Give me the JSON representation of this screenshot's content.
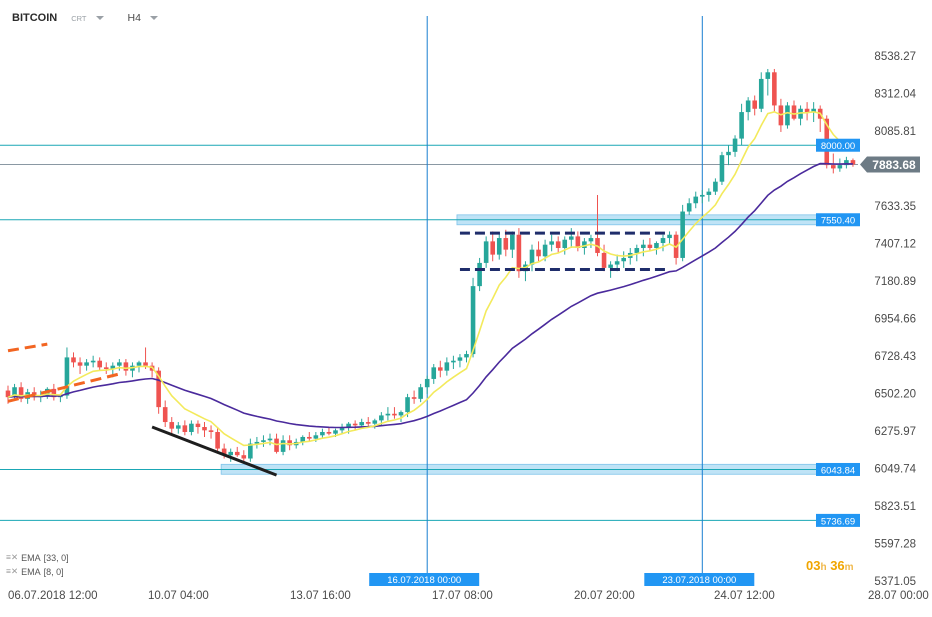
{
  "header": {
    "symbol": "BITCOIN",
    "subtitle": "CRT",
    "timeframe": "H4"
  },
  "indicators": [
    {
      "label": "EMA",
      "params": "[33, 0]",
      "color": "#4a2a9c"
    },
    {
      "label": "EMA",
      "params": "[8, 0]",
      "color": "#f3ea5c"
    }
  ],
  "countdown": {
    "hours": "03",
    "hours_unit": "h",
    "minutes": "36",
    "minutes_unit": "m"
  },
  "colors": {
    "bull": "#26a69a",
    "bear": "#ef5350",
    "hline": "#1aa7b5",
    "vline": "#1a7fd0",
    "price_box": "#2196f3",
    "current_price_box": "#6d7b85",
    "zone_fill": "#bfe3f6",
    "dashed_box": "#1f2d6b",
    "trend_black": "#1e1e1e",
    "trend_orange": "#f26522"
  },
  "chart_data": {
    "type": "candlestick",
    "title": "",
    "y_ticks": [
      "8538.27",
      "8312.04",
      "8085.81",
      "7859.59",
      "7633.35",
      "7407.12",
      "7180.89",
      "6954.66",
      "6728.43",
      "6502.20",
      "6275.97",
      "6049.74",
      "5823.51",
      "5597.28",
      "5371.05"
    ],
    "x_ticks": [
      "06.07.2018  12:00",
      "10.07  04:00",
      "13.07  16:00",
      "17.07  08:00",
      "20.07  20:00",
      "24.07  12:00",
      "28.07  00:00"
    ],
    "ylim": [
      5371.05,
      8538.27
    ],
    "current_price": "7883.68",
    "horizontal_lines": [
      {
        "label": "8000.00",
        "value": 8000.0
      },
      {
        "label": "7550.40",
        "value": 7550.4
      },
      {
        "label": "6043.84",
        "value": 6043.84
      },
      {
        "label": "5736.69",
        "value": 5736.69
      }
    ],
    "vertical_lines": [
      {
        "label": "16.07.2018 00:00",
        "index": 64
      },
      {
        "label": "23.07.2018 00:00",
        "index": 106
      }
    ],
    "zones": [
      {
        "from_index": 69,
        "to_index": 125,
        "low": 7520,
        "high": 7580
      },
      {
        "from_index": 33,
        "to_index": 125,
        "low": 6015,
        "high": 6075
      }
    ],
    "dashed_boxes": [
      {
        "from_index": 69,
        "to_index": 101,
        "low": 7250,
        "high": 7470
      }
    ],
    "trendlines": [
      {
        "style": "solid",
        "color_key": "trend_black",
        "from": [
          22,
          6300
        ],
        "to": [
          41,
          6010
        ]
      },
      {
        "style": "dashed",
        "color_key": "trend_orange",
        "from": [
          0,
          6455
        ],
        "to": [
          17,
          6620
        ]
      },
      {
        "style": "dashed",
        "color_key": "trend_orange",
        "from": [
          0,
          6760
        ],
        "to": [
          6,
          6800
        ]
      }
    ],
    "candles": [
      [
        6520,
        6550,
        6440,
        6480
      ],
      [
        6480,
        6560,
        6470,
        6540
      ],
      [
        6540,
        6570,
        6450,
        6470
      ],
      [
        6470,
        6530,
        6440,
        6510
      ],
      [
        6510,
        6540,
        6460,
        6480
      ],
      [
        6480,
        6520,
        6450,
        6490
      ],
      [
        6490,
        6540,
        6470,
        6530
      ],
      [
        6530,
        6560,
        6460,
        6480
      ],
      [
        6480,
        6500,
        6450,
        6490
      ],
      [
        6490,
        6780,
        6470,
        6720
      ],
      [
        6720,
        6750,
        6660,
        6690
      ],
      [
        6690,
        6720,
        6620,
        6670
      ],
      [
        6670,
        6710,
        6640,
        6690
      ],
      [
        6690,
        6730,
        6660,
        6700
      ],
      [
        6700,
        6720,
        6640,
        6660
      ],
      [
        6660,
        6690,
        6620,
        6650
      ],
      [
        6650,
        6690,
        6600,
        6670
      ],
      [
        6670,
        6710,
        6640,
        6690
      ],
      [
        6690,
        6710,
        6610,
        6640
      ],
      [
        6640,
        6690,
        6600,
        6670
      ],
      [
        6670,
        6700,
        6630,
        6690
      ],
      [
        6690,
        6780,
        6650,
        6670
      ],
      [
        6670,
        6690,
        6600,
        6640
      ],
      [
        6640,
        6660,
        6380,
        6420
      ],
      [
        6420,
        6460,
        6300,
        6330
      ],
      [
        6330,
        6360,
        6250,
        6290
      ],
      [
        6290,
        6330,
        6260,
        6310
      ],
      [
        6310,
        6340,
        6250,
        6270
      ],
      [
        6270,
        6340,
        6250,
        6320
      ],
      [
        6320,
        6340,
        6260,
        6300
      ],
      [
        6300,
        6330,
        6240,
        6280
      ],
      [
        6280,
        6310,
        6230,
        6270
      ],
      [
        6270,
        6300,
        6150,
        6170
      ],
      [
        6170,
        6200,
        6110,
        6130
      ],
      [
        6130,
        6170,
        6090,
        6150
      ],
      [
        6150,
        6180,
        6120,
        6130
      ],
      [
        6130,
        6160,
        6080,
        6110
      ],
      [
        6110,
        6230,
        6090,
        6200
      ],
      [
        6200,
        6240,
        6170,
        6210
      ],
      [
        6210,
        6250,
        6180,
        6220
      ],
      [
        6220,
        6260,
        6190,
        6230
      ],
      [
        6230,
        6260,
        6140,
        6150
      ],
      [
        6150,
        6250,
        6130,
        6220
      ],
      [
        6220,
        6250,
        6160,
        6190
      ],
      [
        6190,
        6230,
        6170,
        6210
      ],
      [
        6210,
        6250,
        6190,
        6240
      ],
      [
        6240,
        6270,
        6210,
        6230
      ],
      [
        6230,
        6270,
        6210,
        6250
      ],
      [
        6250,
        6290,
        6230,
        6270
      ],
      [
        6270,
        6300,
        6250,
        6260
      ],
      [
        6260,
        6290,
        6240,
        6280
      ],
      [
        6280,
        6320,
        6260,
        6300
      ],
      [
        6300,
        6330,
        6260,
        6320
      ],
      [
        6320,
        6340,
        6280,
        6310
      ],
      [
        6310,
        6350,
        6290,
        6330
      ],
      [
        6330,
        6360,
        6300,
        6320
      ],
      [
        6320,
        6350,
        6290,
        6340
      ],
      [
        6340,
        6390,
        6310,
        6370
      ],
      [
        6370,
        6420,
        6340,
        6380
      ],
      [
        6380,
        6420,
        6350,
        6370
      ],
      [
        6370,
        6400,
        6330,
        6390
      ],
      [
        6390,
        6500,
        6360,
        6480
      ],
      [
        6480,
        6520,
        6440,
        6470
      ],
      [
        6470,
        6560,
        6450,
        6540
      ],
      [
        6540,
        6610,
        6500,
        6590
      ],
      [
        6590,
        6680,
        6560,
        6660
      ],
      [
        6660,
        6700,
        6600,
        6640
      ],
      [
        6640,
        6720,
        6610,
        6690
      ],
      [
        6690,
        6730,
        6650,
        6700
      ],
      [
        6700,
        6740,
        6660,
        6720
      ],
      [
        6720,
        6760,
        6690,
        6740
      ],
      [
        6740,
        7200,
        6720,
        7150
      ],
      [
        7150,
        7320,
        7120,
        7290
      ],
      [
        7290,
        7450,
        7260,
        7420
      ],
      [
        7420,
        7480,
        7300,
        7340
      ],
      [
        7340,
        7470,
        7310,
        7440
      ],
      [
        7440,
        7490,
        7330,
        7370
      ],
      [
        7370,
        7480,
        7320,
        7460
      ],
      [
        7460,
        7500,
        7200,
        7240
      ],
      [
        7240,
        7300,
        7180,
        7280
      ],
      [
        7280,
        7400,
        7240,
        7370
      ],
      [
        7370,
        7420,
        7300,
        7330
      ],
      [
        7330,
        7430,
        7300,
        7400
      ],
      [
        7400,
        7460,
        7360,
        7420
      ],
      [
        7420,
        7450,
        7350,
        7380
      ],
      [
        7380,
        7450,
        7340,
        7430
      ],
      [
        7430,
        7500,
        7380,
        7450
      ],
      [
        7450,
        7480,
        7360,
        7380
      ],
      [
        7380,
        7440,
        7340,
        7420
      ],
      [
        7420,
        7460,
        7380,
        7440
      ],
      [
        7440,
        7700,
        7330,
        7350
      ],
      [
        7350,
        7400,
        7240,
        7260
      ],
      [
        7260,
        7300,
        7200,
        7280
      ],
      [
        7280,
        7340,
        7240,
        7300
      ],
      [
        7300,
        7360,
        7260,
        7320
      ],
      [
        7320,
        7380,
        7280,
        7350
      ],
      [
        7350,
        7400,
        7300,
        7380
      ],
      [
        7380,
        7430,
        7330,
        7400
      ],
      [
        7400,
        7440,
        7360,
        7380
      ],
      [
        7380,
        7420,
        7340,
        7410
      ],
      [
        7410,
        7460,
        7360,
        7440
      ],
      [
        7440,
        7480,
        7400,
        7460
      ],
      [
        7460,
        7480,
        7280,
        7320
      ],
      [
        7320,
        7640,
        7300,
        7600
      ],
      [
        7600,
        7680,
        7580,
        7650
      ],
      [
        7650,
        7720,
        7620,
        7690
      ],
      [
        7690,
        7730,
        7650,
        7700
      ],
      [
        7700,
        7740,
        7660,
        7720
      ],
      [
        7720,
        7800,
        7700,
        7780
      ],
      [
        7780,
        7960,
        7760,
        7940
      ],
      [
        7940,
        8000,
        7880,
        7960
      ],
      [
        7960,
        8060,
        7930,
        8040
      ],
      [
        8040,
        8250,
        8000,
        8200
      ],
      [
        8200,
        8290,
        8150,
        8270
      ],
      [
        8270,
        8300,
        8180,
        8220
      ],
      [
        8220,
        8440,
        8200,
        8400
      ],
      [
        8400,
        8460,
        8300,
        8440
      ],
      [
        8440,
        8460,
        8200,
        8240
      ],
      [
        8240,
        8280,
        8080,
        8120
      ],
      [
        8120,
        8260,
        8100,
        8240
      ],
      [
        8240,
        8270,
        8150,
        8160
      ],
      [
        8160,
        8240,
        8120,
        8220
      ],
      [
        8220,
        8260,
        8150,
        8200
      ],
      [
        8200,
        8260,
        8140,
        8220
      ],
      [
        8220,
        8240,
        8080,
        8160
      ],
      [
        8160,
        8180,
        7860,
        7880
      ],
      [
        7880,
        7950,
        7830,
        7860
      ],
      [
        7860,
        7920,
        7840,
        7880
      ],
      [
        7880,
        7930,
        7860,
        7910
      ],
      [
        7910,
        7920,
        7870,
        7884
      ]
    ]
  }
}
